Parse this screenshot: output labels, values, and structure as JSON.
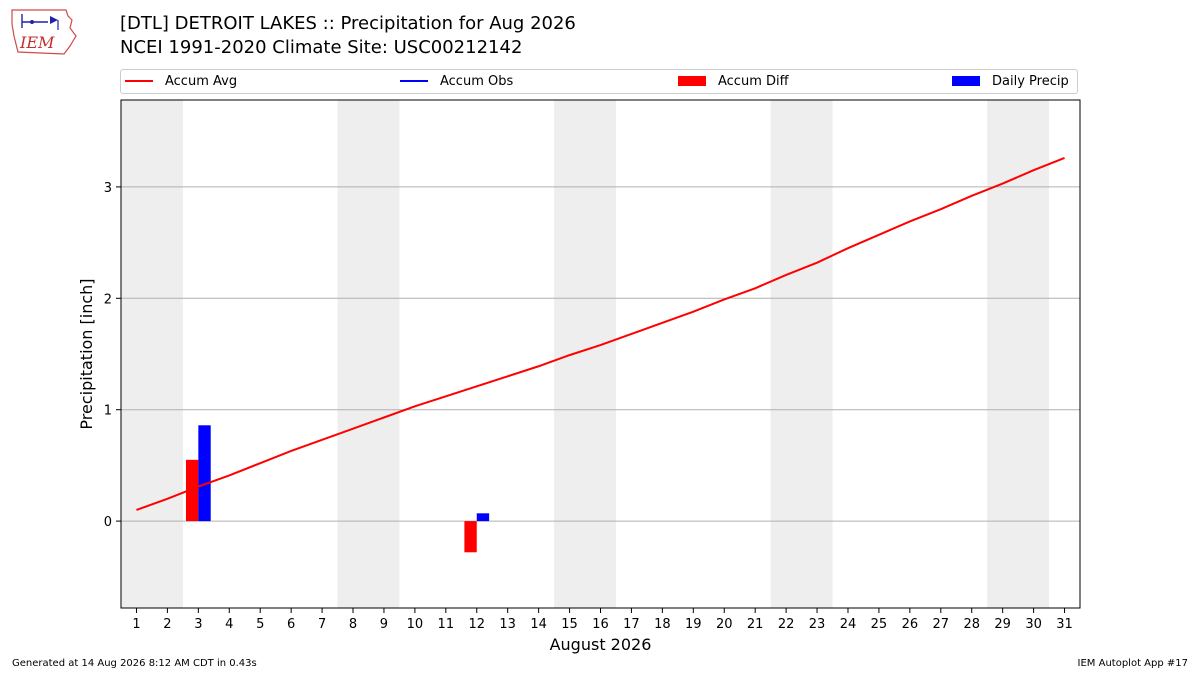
{
  "header": {
    "title_line1": "[DTL] DETROIT LAKES :: Precipitation for Aug 2026",
    "title_line2": "NCEI 1991-2020 Climate Site: USC00212142",
    "logo_text": "IEM"
  },
  "legend": {
    "items": [
      {
        "label": "Accum Avg",
        "kind": "line",
        "color": "#ff0000"
      },
      {
        "label": "Accum Obs",
        "kind": "line",
        "color": "#0000ff"
      },
      {
        "label": "Accum Diff",
        "kind": "patch",
        "color": "#ff0000"
      },
      {
        "label": "Daily Precip",
        "kind": "patch",
        "color": "#0000ff"
      }
    ]
  },
  "footer": {
    "left": "Generated at 14 Aug 2026 8:12 AM CDT in 0.43s",
    "right": "IEM Autoplot App #17"
  },
  "chart_data": {
    "type": "line",
    "xlabel": "August 2026",
    "ylabel": "Precipitation [inch]",
    "xlim": [
      0.5,
      31.5
    ],
    "ylim": [
      -0.78,
      3.78
    ],
    "x_ticks": [
      1,
      2,
      3,
      4,
      5,
      6,
      7,
      8,
      9,
      10,
      11,
      12,
      13,
      14,
      15,
      16,
      17,
      18,
      19,
      20,
      21,
      22,
      23,
      24,
      25,
      26,
      27,
      28,
      29,
      30,
      31
    ],
    "y_ticks": [
      0,
      1,
      2,
      3
    ],
    "grid": "y",
    "weekend_shading": [
      [
        0.5,
        2.5
      ],
      [
        7.5,
        9.5
      ],
      [
        14.5,
        16.5
      ],
      [
        21.5,
        23.5
      ],
      [
        28.5,
        30.5
      ]
    ],
    "series": [
      {
        "name": "Accum Avg",
        "kind": "line",
        "color": "#ff0000",
        "x": [
          1,
          2,
          3,
          4,
          5,
          6,
          7,
          8,
          9,
          10,
          11,
          12,
          13,
          14,
          15,
          16,
          17,
          18,
          19,
          20,
          21,
          22,
          23,
          24,
          25,
          26,
          27,
          28,
          29,
          30,
          31
        ],
        "values": [
          0.1,
          0.2,
          0.31,
          0.41,
          0.52,
          0.63,
          0.73,
          0.83,
          0.93,
          1.03,
          1.12,
          1.21,
          1.3,
          1.39,
          1.49,
          1.58,
          1.68,
          1.78,
          1.88,
          1.99,
          2.09,
          2.21,
          2.32,
          2.45,
          2.57,
          2.69,
          2.8,
          2.92,
          3.03,
          3.15,
          3.26
        ]
      },
      {
        "name": "Accum Diff",
        "kind": "bar",
        "color": "#ff0000",
        "x": [
          3,
          12
        ],
        "values": [
          0.55,
          -0.28
        ]
      },
      {
        "name": "Daily Precip",
        "kind": "bar",
        "color": "#0000ff",
        "x": [
          3,
          12
        ],
        "values": [
          0.86,
          0.07
        ]
      }
    ]
  }
}
